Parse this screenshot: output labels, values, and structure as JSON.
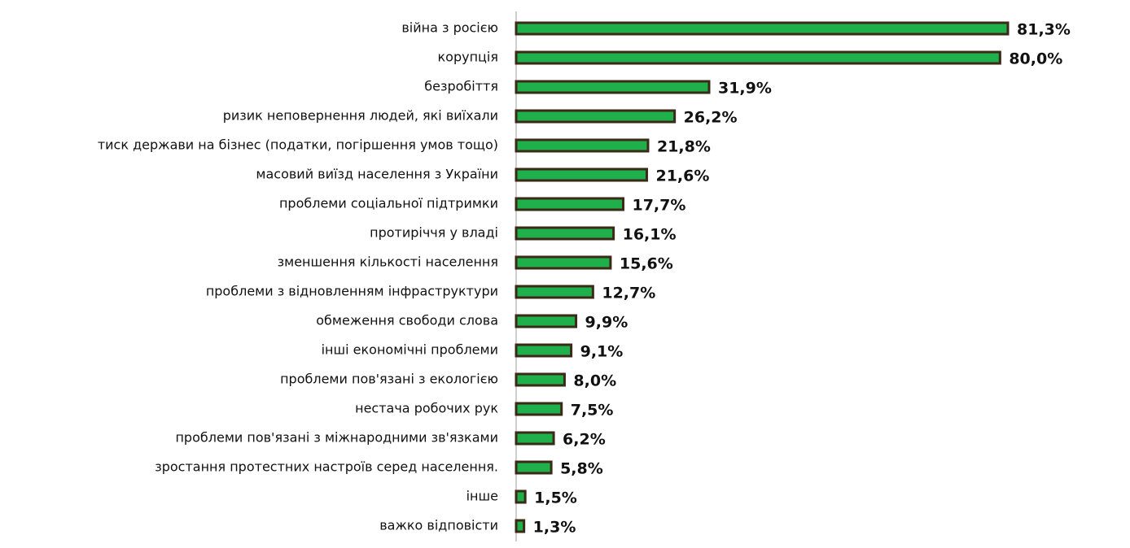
{
  "chart_data": {
    "type": "hbar",
    "categories": [
      "війна з росією",
      "корупція",
      "безробіття",
      "ризик неповернення людей, які виїхали",
      "тиск держави на бізнес (податки, погіршення умов тощо)",
      "масовий виїзд населення з України",
      "проблеми соціальної підтримки",
      "протиріччя у владі",
      "зменшення кількості населення",
      "проблеми з відновленням інфраструктури",
      "обмеження свободи слова",
      "інші економічні проблеми",
      "проблеми пов'язані з екологією",
      "нестача робочих рук",
      "проблеми пов'язані з міжнародними зв'язками",
      "зростання протестних настроїв серед населення.",
      "інше",
      "важко відповісти"
    ],
    "values": [
      81.3,
      80.0,
      31.9,
      26.2,
      21.8,
      21.6,
      17.7,
      16.1,
      15.6,
      12.7,
      9.9,
      9.1,
      8.0,
      7.5,
      6.2,
      5.8,
      1.5,
      1.3
    ],
    "value_labels": [
      "81,3%",
      "80,0%",
      "31,9%",
      "26,2%",
      "21,8%",
      "21,6%",
      "17,7%",
      "16,1%",
      "15,6%",
      "12,7%",
      "9,9%",
      "9,1%",
      "8,0%",
      "7,5%",
      "6,2%",
      "5,8%",
      "1,5%",
      "1,3%"
    ],
    "color": "#1faf4b",
    "edge_color": "#3a2a16"
  }
}
